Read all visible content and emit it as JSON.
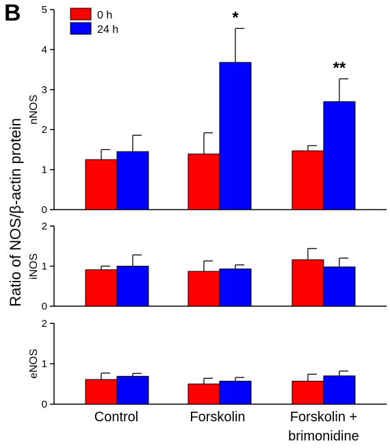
{
  "panel_letter": "B",
  "colors": {
    "series_0h": "#ff0000",
    "series_24h": "#0000ff",
    "axis": "#000000"
  },
  "shared_ylabel": "Ratio of NOS/β-actin protein",
  "categories": [
    "Control",
    "Forskolin",
    "Forskolin +",
    "brimonidine"
  ],
  "category_labels": {
    "control": "Control",
    "forskolin": "Forskolin",
    "forskolin_brimonidine_line1": "Forskolin +",
    "forskolin_brimonidine_line2": "brimonidine"
  },
  "legend": [
    {
      "label": "0 h",
      "color": "#ff0000"
    },
    {
      "label": "24 h",
      "color": "#0000ff"
    }
  ],
  "chart_data": [
    {
      "type": "bar",
      "panel": "nNOS",
      "ylabel": "nNOS",
      "ylim": [
        0,
        5
      ],
      "yticks": [
        0,
        1,
        2,
        3,
        4,
        5
      ],
      "categories": [
        "Control",
        "Forskolin",
        "Forskolin + brimonidine"
      ],
      "series": [
        {
          "name": "0 h",
          "values": [
            1.25,
            1.39,
            1.47
          ],
          "errors": [
            0.25,
            0.53,
            0.13
          ]
        },
        {
          "name": "24 h",
          "values": [
            1.45,
            3.68,
            2.7
          ],
          "errors": [
            0.41,
            0.85,
            0.57
          ]
        }
      ],
      "annotations": [
        {
          "category": "Forskolin",
          "series": "24 h",
          "text": "*"
        },
        {
          "category": "Forskolin + brimonidine",
          "series": "24 h",
          "text": "**"
        }
      ]
    },
    {
      "type": "bar",
      "panel": "iNOS",
      "ylabel": "iNOS",
      "ylim": [
        0,
        2
      ],
      "yticks": [
        0,
        1,
        2
      ],
      "categories": [
        "Control",
        "Forskolin",
        "Forskolin + brimonidine"
      ],
      "series": [
        {
          "name": "0 h",
          "values": [
            0.91,
            0.87,
            1.16
          ],
          "errors": [
            0.09,
            0.26,
            0.28
          ]
        },
        {
          "name": "24 h",
          "values": [
            1.0,
            0.93,
            0.98
          ],
          "errors": [
            0.28,
            0.1,
            0.22
          ]
        }
      ],
      "annotations": []
    },
    {
      "type": "bar",
      "panel": "eNOS",
      "ylabel": "eNOS",
      "ylim": [
        0,
        2
      ],
      "yticks": [
        0,
        1,
        2
      ],
      "categories": [
        "Control",
        "Forskolin",
        "Forskolin + brimonidine"
      ],
      "series": [
        {
          "name": "0 h",
          "values": [
            0.61,
            0.5,
            0.57
          ],
          "errors": [
            0.16,
            0.14,
            0.17
          ]
        },
        {
          "name": "24 h",
          "values": [
            0.69,
            0.57,
            0.7
          ],
          "errors": [
            0.07,
            0.09,
            0.12
          ]
        }
      ],
      "annotations": []
    }
  ]
}
